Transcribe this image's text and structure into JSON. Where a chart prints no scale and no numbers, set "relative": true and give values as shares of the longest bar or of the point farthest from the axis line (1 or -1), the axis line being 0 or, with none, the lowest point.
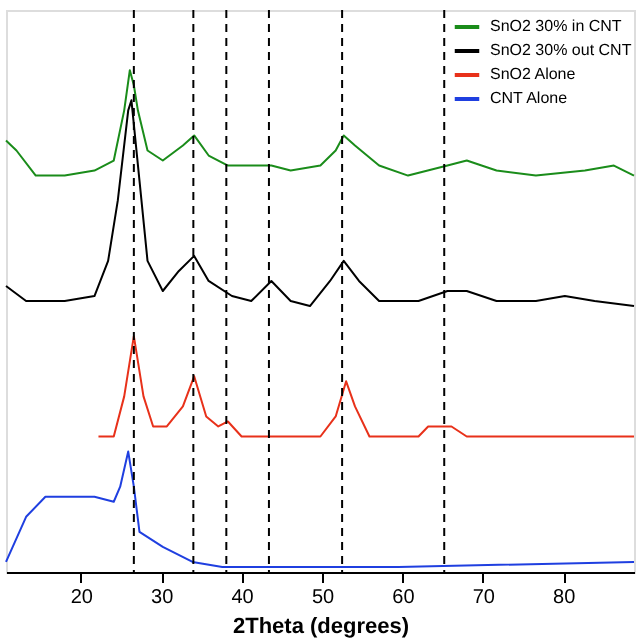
{
  "chart_data": {
    "type": "line",
    "xlabel": "2Theta (degrees)",
    "relative": true,
    "xlim": [
      10.7,
      88.8
    ],
    "xticks": [
      20,
      30,
      40,
      50,
      60,
      70,
      80
    ],
    "grid": false,
    "legend": "top right",
    "marker": "none",
    "line_style": "solid",
    "series": [
      {
        "name": "SnO2 30% in CNT",
        "color": "#1a8c1a",
        "x": [
          10.7,
          12.0,
          14.4,
          18.0,
          21.7,
          24.1,
          25.4,
          26.1,
          26.6,
          27.1,
          28.3,
          30.2,
          32.7,
          34.1,
          35.9,
          38.3,
          40.0,
          42.4,
          43.7,
          46.1,
          49.8,
          51.7,
          52.7,
          54.1,
          57.1,
          60.7,
          65.6,
          68.0,
          71.7,
          76.6,
          82.7,
          86.3,
          88.8
        ],
        "values": [
          0.86,
          0.84,
          0.79,
          0.79,
          0.8,
          0.82,
          0.92,
          1.0,
          0.97,
          0.92,
          0.84,
          0.82,
          0.85,
          0.87,
          0.83,
          0.81,
          0.81,
          0.81,
          0.81,
          0.8,
          0.81,
          0.84,
          0.87,
          0.85,
          0.81,
          0.79,
          0.81,
          0.82,
          0.8,
          0.79,
          0.8,
          0.81,
          0.79
        ]
      },
      {
        "name": "SnO2 30% out CNT",
        "color": "#000000",
        "x": [
          10.7,
          13.2,
          18.0,
          21.7,
          23.4,
          24.6,
          25.9,
          26.3,
          27.3,
          28.3,
          30.2,
          32.2,
          34.1,
          35.9,
          38.8,
          41.2,
          43.7,
          46.1,
          48.5,
          51.0,
          52.7,
          54.6,
          57.1,
          62.0,
          65.6,
          68.0,
          71.7,
          76.6,
          80.2,
          83.9,
          88.8
        ],
        "values": [
          0.57,
          0.54,
          0.54,
          0.55,
          0.62,
          0.74,
          0.92,
          0.94,
          0.78,
          0.62,
          0.56,
          0.6,
          0.63,
          0.58,
          0.55,
          0.54,
          0.58,
          0.54,
          0.53,
          0.58,
          0.62,
          0.58,
          0.54,
          0.54,
          0.56,
          0.56,
          0.54,
          0.54,
          0.55,
          0.54,
          0.53
        ]
      },
      {
        "name": "SnO2 Alone",
        "color": "#e8311a",
        "x": [
          22.2,
          24.1,
          25.4,
          26.6,
          27.8,
          29.0,
          30.7,
          32.7,
          34.1,
          35.6,
          37.1,
          38.3,
          40.0,
          49.8,
          51.7,
          53.0,
          54.1,
          55.9,
          62.0,
          63.2,
          66.1,
          68.0,
          69.3,
          79.8,
          88.8
        ],
        "values": [
          0.27,
          0.27,
          0.35,
          0.47,
          0.35,
          0.29,
          0.29,
          0.33,
          0.39,
          0.31,
          0.29,
          0.3,
          0.27,
          0.27,
          0.31,
          0.38,
          0.33,
          0.27,
          0.27,
          0.29,
          0.29,
          0.27,
          0.27,
          0.27,
          0.27
        ]
      },
      {
        "name": "CNT Alone",
        "color": "#1f3fe0",
        "x": [
          10.7,
          13.2,
          15.6,
          18.0,
          21.7,
          24.1,
          24.9,
          25.9,
          26.6,
          27.3,
          30.2,
          33.9,
          37.6,
          59.5,
          88.8
        ],
        "values": [
          0.02,
          0.11,
          0.15,
          0.15,
          0.15,
          0.14,
          0.17,
          0.24,
          0.17,
          0.08,
          0.05,
          0.02,
          0.01,
          0.01,
          0.02
        ]
      }
    ],
    "ref_lines": [
      {
        "axis": "x",
        "value": 26.6,
        "line_style": "dashed",
        "color": "#000000"
      },
      {
        "axis": "x",
        "value": 34.0,
        "line_style": "dashed",
        "color": "#000000"
      },
      {
        "axis": "x",
        "value": 38.1,
        "line_style": "dashed",
        "color": "#000000"
      },
      {
        "axis": "x",
        "value": 43.4,
        "line_style": "dashed",
        "color": "#000000"
      },
      {
        "axis": "x",
        "value": 52.5,
        "line_style": "dashed",
        "color": "#000000"
      },
      {
        "axis": "x",
        "value": 65.2,
        "line_style": "dashed",
        "color": "#000000"
      }
    ]
  }
}
